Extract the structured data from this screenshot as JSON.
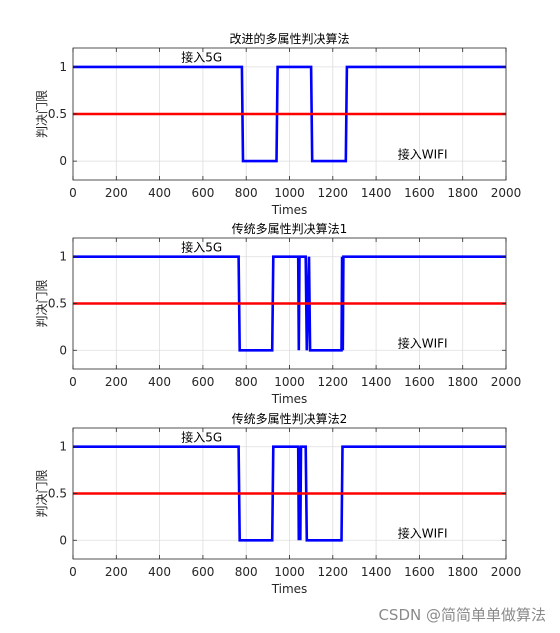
{
  "watermark": "CSDN @简简单单做算法",
  "colors": {
    "series": "#0000ff",
    "threshold": "#ff0000",
    "grid": "#dddddd",
    "axis": "#262626"
  },
  "chart_data": [
    {
      "type": "line",
      "title": "改进的多属性判决算法",
      "xlabel": "Times",
      "ylabel": "判决门限",
      "xlim": [
        0,
        2000
      ],
      "ylim": [
        -0.2,
        1.2
      ],
      "xticks": [
        0,
        200,
        400,
        600,
        800,
        1000,
        1200,
        1400,
        1600,
        1800,
        2000
      ],
      "yticks": [
        0,
        0.5,
        1
      ],
      "grid": true,
      "annotations": [
        {
          "text": "接入5G",
          "x": 500,
          "y": 1.1
        },
        {
          "text": "接入WIFI",
          "x": 1500,
          "y": 0.07
        }
      ],
      "series": [
        {
          "x": [
            0,
            780,
            785,
            940,
            945,
            1100,
            1105,
            1260,
            1265,
            2000
          ],
          "y": [
            1,
            1,
            0,
            0,
            1,
            1,
            0,
            0,
            1,
            1
          ]
        },
        {
          "x": [
            0,
            2000
          ],
          "y": [
            0.5,
            0.5
          ]
        }
      ]
    },
    {
      "type": "line",
      "title": "传统多属性判决算法1",
      "xlabel": "Times",
      "ylabel": "判决门限",
      "xlim": [
        0,
        2000
      ],
      "ylim": [
        -0.2,
        1.2
      ],
      "xticks": [
        0,
        200,
        400,
        600,
        800,
        1000,
        1200,
        1400,
        1600,
        1800,
        2000
      ],
      "yticks": [
        0,
        0.5,
        1
      ],
      "grid": true,
      "annotations": [
        {
          "text": "接入5G",
          "x": 500,
          "y": 1.1
        },
        {
          "text": "接入WIFI",
          "x": 1500,
          "y": 0.07
        }
      ],
      "series": [
        {
          "x": [
            0,
            765,
            770,
            920,
            925,
            1040,
            1043,
            1046,
            1075,
            1080,
            1090,
            1095,
            1240,
            1243,
            1246,
            1249,
            1252,
            2000
          ],
          "y": [
            1,
            1,
            0,
            0,
            1,
            1,
            0,
            1,
            1,
            0,
            1,
            0,
            0,
            1,
            0,
            1,
            1,
            1
          ]
        },
        {
          "x": [
            0,
            2000
          ],
          "y": [
            0.5,
            0.5
          ]
        }
      ]
    },
    {
      "type": "line",
      "title": "传统多属性判决算法2",
      "xlabel": "Times",
      "ylabel": "判决门限",
      "xlim": [
        0,
        2000
      ],
      "ylim": [
        -0.2,
        1.2
      ],
      "xticks": [
        0,
        200,
        400,
        600,
        800,
        1000,
        1200,
        1400,
        1600,
        1800,
        2000
      ],
      "yticks": [
        0,
        0.5,
        1
      ],
      "grid": true,
      "annotations": [
        {
          "text": "接入5G",
          "x": 500,
          "y": 1.1
        },
        {
          "text": "接入WIFI",
          "x": 1500,
          "y": 0.07
        }
      ],
      "series": [
        {
          "x": [
            0,
            765,
            770,
            920,
            925,
            1040,
            1043,
            1046,
            1050,
            1053,
            1075,
            1080,
            1240,
            1245,
            2000
          ],
          "y": [
            1,
            1,
            0,
            0,
            1,
            1,
            0,
            1,
            0,
            1,
            1,
            0,
            0,
            1,
            1
          ]
        },
        {
          "x": [
            0,
            2000
          ],
          "y": [
            0.5,
            0.5
          ]
        }
      ]
    }
  ]
}
